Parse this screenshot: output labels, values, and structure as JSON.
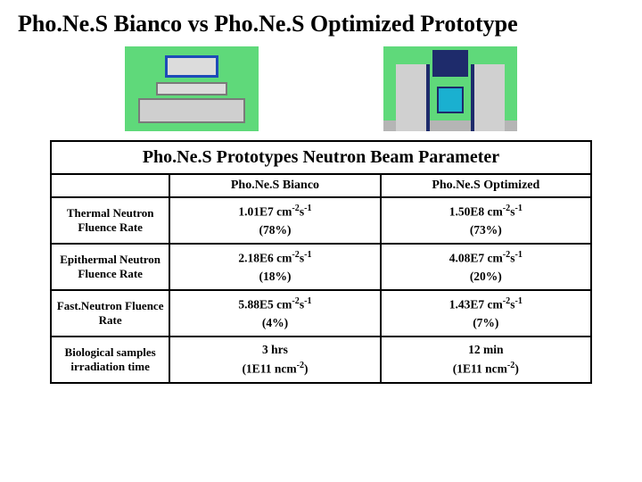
{
  "title": "Pho.Ne.S Bianco vs Pho.Ne.S Optimized Prototype",
  "table": {
    "caption": "Pho.Ne.S Prototypes Neutron Beam Parameter",
    "col1": "Pho.Ne.S Bianco",
    "col2": "Pho.Ne.S Optimized",
    "rows": {
      "thermal": {
        "label": "Thermal Neutron Fluence Rate",
        "bianco_val": "1.01E7 cm",
        "bianco_pct": "(78%)",
        "opt_val": "1.50E8 cm",
        "opt_pct": "(73%)"
      },
      "epithermal": {
        "label": "Epithermal Neutron Fluence Rate",
        "bianco_val": "2.18E6 cm",
        "bianco_pct": "(18%)",
        "opt_val": "4.08E7 cm",
        "opt_pct": "(20%)"
      },
      "fast": {
        "label": "Fast.Neutron Fluence Rate",
        "bianco_val": "5.88E5 cm",
        "bianco_pct": "(4%)",
        "opt_val": "1.43E7 cm",
        "opt_pct": "(7%)"
      },
      "bio": {
        "label": "Biological samples irradiation time",
        "bianco_time": "3 hrs",
        "bianco_dose": "(1E11 ncm",
        "opt_time": "12 min",
        "opt_dose": "(1E11 ncm"
      }
    },
    "unit_suffix_html": "-2s-1",
    "dose_suffix_html": "-2)"
  },
  "colors": {
    "background": "#ffffff",
    "diagram_bg": "#5fd97a",
    "border": "#000000"
  }
}
